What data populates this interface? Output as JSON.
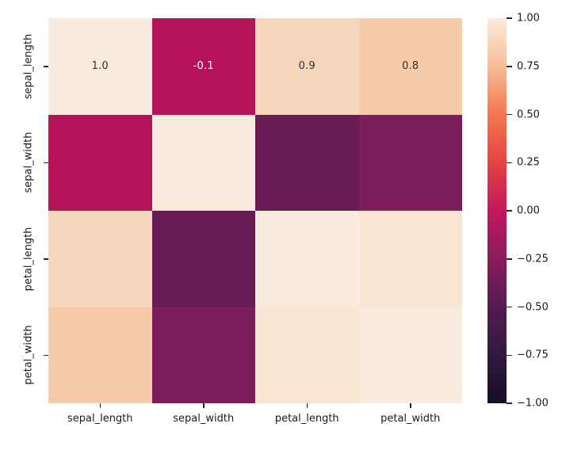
{
  "figure": {
    "background": "#ffffff",
    "title": ""
  },
  "chart_data": {
    "type": "heatmap",
    "title": "",
    "xlabel": "",
    "ylabel": "",
    "categories": [
      "sepal_length",
      "sepal_width",
      "petal_length",
      "petal_width"
    ],
    "x_tick_labels": [
      "sepal_length",
      "sepal_width",
      "petal_length",
      "petal_width"
    ],
    "y_tick_labels": [
      "sepal_length",
      "sepal_width",
      "petal_length",
      "petal_width"
    ],
    "matrix": [
      [
        1.0,
        -0.12,
        0.87,
        0.82
      ],
      [
        -0.12,
        1.0,
        -0.43,
        -0.37
      ],
      [
        0.87,
        -0.43,
        1.0,
        0.96
      ],
      [
        0.82,
        -0.37,
        0.96,
        1.0
      ]
    ],
    "matrix_colors": [
      [
        "#f9ebdd",
        "#b4135b",
        "#f6d6ba",
        "#f5cba9"
      ],
      [
        "#b4135b",
        "#f9ebdd",
        "#6a1c54",
        "#7d1e5c"
      ],
      [
        "#f6d6ba",
        "#6a1c54",
        "#f9ebdd",
        "#f8e5d2"
      ],
      [
        "#f5cba9",
        "#7d1e5c",
        "#f8e5d2",
        "#f9ebdd"
      ]
    ],
    "annotations": [
      {
        "row": 0,
        "col": 0,
        "text": "1.0",
        "color": "#2f2f2f"
      },
      {
        "row": 0,
        "col": 1,
        "text": "-0.1",
        "color": "#ffffff"
      },
      {
        "row": 0,
        "col": 2,
        "text": "0.9",
        "color": "#2f2f2f"
      },
      {
        "row": 0,
        "col": 3,
        "text": "0.8",
        "color": "#2f2f2f"
      }
    ],
    "value_range": [
      -1,
      1
    ],
    "colormap": "rocket",
    "grid": false,
    "legend_position": "none",
    "colorbar": {
      "tick_labels": [
        "1.00",
        "0.75",
        "0.50",
        "0.25",
        "0.00",
        "−0.25",
        "−0.50",
        "−0.75",
        "−1.00"
      ],
      "gradient": [
        {
          "pos": 0,
          "color": "#faebdd"
        },
        {
          "pos": 12.5,
          "color": "#f7bd97"
        },
        {
          "pos": 25,
          "color": "#f3764f"
        },
        {
          "pos": 37.5,
          "color": "#e64341"
        },
        {
          "pos": 50,
          "color": "#c4175c"
        },
        {
          "pos": 62.5,
          "color": "#8a1d5c"
        },
        {
          "pos": 75,
          "color": "#531b52"
        },
        {
          "pos": 87.5,
          "color": "#311a3f"
        },
        {
          "pos": 100,
          "color": "#160e29"
        }
      ]
    },
    "tick_color": "#262626"
  }
}
